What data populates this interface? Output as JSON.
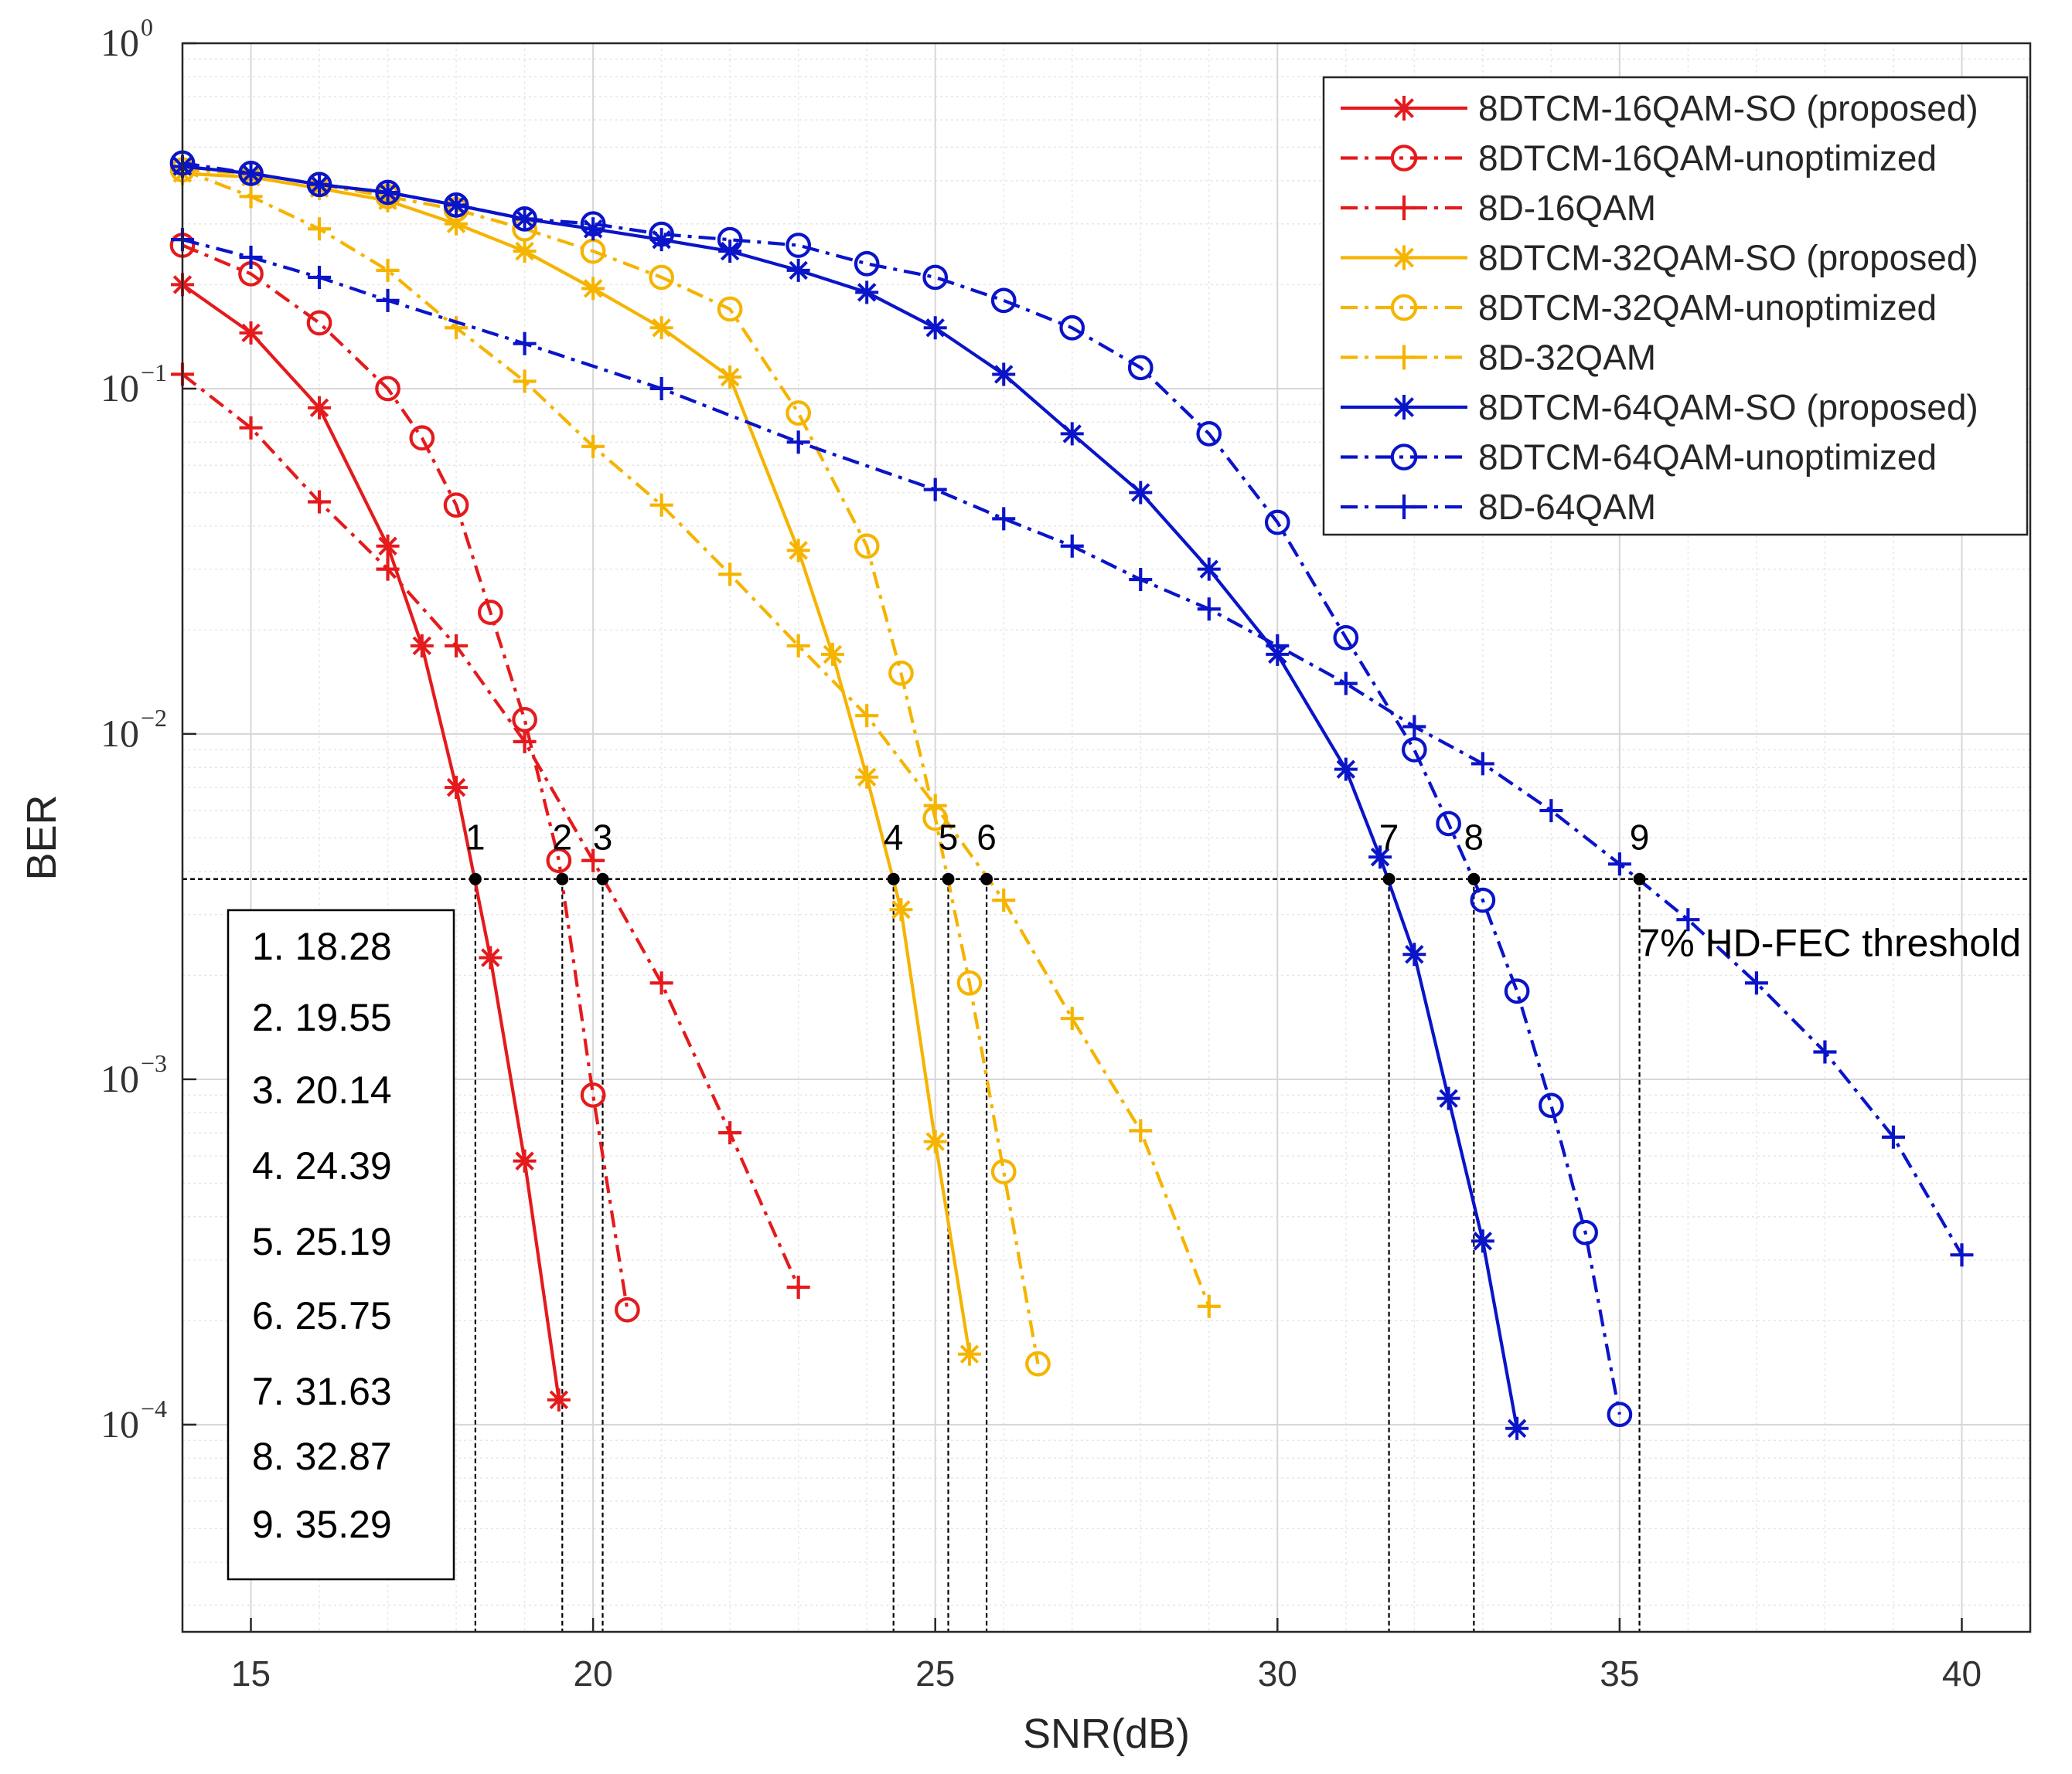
{
  "chart_data": {
    "type": "line",
    "xlabel": "SNR(dB)",
    "ylabel": "BER",
    "xlim": [
      14,
      41
    ],
    "ylim_log10": [
      -4.6,
      0
    ],
    "yscale": "log",
    "grid": true,
    "x_ticks": [
      15,
      20,
      25,
      30,
      35,
      40
    ],
    "y_ticks": [
      {
        "base": "10",
        "exp": "0"
      },
      {
        "base": "10",
        "exp": "−1"
      },
      {
        "base": "10",
        "exp": "−2"
      },
      {
        "base": "10",
        "exp": "−3"
      },
      {
        "base": "10",
        "exp": "−4"
      }
    ],
    "legend_position": "top-right",
    "threshold": {
      "label": "7% HD-FEC threshold",
      "ber": 0.0038
    },
    "threshold_points": [
      {
        "label": "1",
        "snr": 18.28
      },
      {
        "label": "2",
        "snr": 19.55
      },
      {
        "label": "3",
        "snr": 20.14
      },
      {
        "label": "4",
        "snr": 24.39
      },
      {
        "label": "5",
        "snr": 25.19
      },
      {
        "label": "6",
        "snr": 25.75
      },
      {
        "label": "7",
        "snr": 31.63
      },
      {
        "label": "8",
        "snr": 32.87
      },
      {
        "label": "9",
        "snr": 35.29
      }
    ],
    "value_box": [
      "1.  18.28",
      "2.  19.55",
      "3.  20.14",
      "4.  24.39",
      "5.  25.19",
      "6.  25.75",
      "7.  31.63",
      "8.  32.87",
      "9.  35.29"
    ],
    "series": [
      {
        "name": "8DTCM-16QAM-SO (proposed)",
        "color": "#e41a1c",
        "line": "solid",
        "marker": "asterisk",
        "x": [
          14,
          15,
          16,
          17,
          17.5,
          18,
          18.5,
          19,
          19.5
        ],
        "y": [
          0.2,
          0.145,
          0.088,
          0.035,
          0.018,
          0.007,
          0.00225,
          0.00058,
          0.000118
        ]
      },
      {
        "name": "8DTCM-16QAM-unoptimized",
        "color": "#e41a1c",
        "line": "dashdot",
        "marker": "circle",
        "x": [
          14,
          15,
          16,
          17,
          17.5,
          18,
          18.5,
          19,
          19.5,
          20,
          20.5
        ],
        "y": [
          0.26,
          0.215,
          0.155,
          0.1,
          0.072,
          0.046,
          0.0225,
          0.011,
          0.0043,
          0.0009,
          0.000215
        ]
      },
      {
        "name": "8D-16QAM",
        "color": "#e41a1c",
        "line": "dashdot",
        "marker": "plus",
        "x": [
          14,
          15,
          16,
          17,
          18,
          19,
          20,
          21,
          22,
          23
        ],
        "y": [
          0.11,
          0.077,
          0.047,
          0.03,
          0.018,
          0.0095,
          0.0043,
          0.0019,
          0.0007,
          0.00025
        ]
      },
      {
        "name": "8DTCM-32QAM-SO (proposed)",
        "color": "#f5b400",
        "line": "solid",
        "marker": "asterisk",
        "x": [
          14,
          15,
          16,
          17,
          18,
          19,
          20,
          21,
          22,
          23,
          23.5,
          24,
          24.5,
          25,
          25.5
        ],
        "y": [
          0.42,
          0.41,
          0.38,
          0.35,
          0.3,
          0.25,
          0.195,
          0.15,
          0.108,
          0.034,
          0.017,
          0.0075,
          0.0031,
          0.00066,
          0.00016
        ]
      },
      {
        "name": "8DTCM-32QAM-unoptimized",
        "color": "#f5b400",
        "line": "dashdot",
        "marker": "circle",
        "x": [
          14,
          15,
          16,
          17,
          18,
          19,
          20,
          21,
          22,
          23,
          24,
          24.5,
          25,
          25.5,
          26,
          26.5
        ],
        "y": [
          0.43,
          0.42,
          0.39,
          0.36,
          0.33,
          0.29,
          0.25,
          0.21,
          0.17,
          0.085,
          0.035,
          0.015,
          0.0057,
          0.0019,
          0.00054,
          0.00015
        ]
      },
      {
        "name": "8D-32QAM",
        "color": "#f5b400",
        "line": "dashdot",
        "marker": "plus",
        "x": [
          14,
          15,
          16,
          17,
          18,
          19,
          20,
          21,
          22,
          23,
          24,
          25,
          26,
          27,
          28,
          29
        ],
        "y": [
          0.43,
          0.36,
          0.29,
          0.22,
          0.15,
          0.105,
          0.068,
          0.046,
          0.029,
          0.018,
          0.0113,
          0.0062,
          0.0033,
          0.0015,
          0.00071,
          0.00022
        ]
      },
      {
        "name": "8DTCM-64QAM-SO (proposed)",
        "color": "#0a14c8",
        "line": "solid",
        "marker": "asterisk",
        "x": [
          14,
          15,
          16,
          17,
          18,
          19,
          20,
          21,
          22,
          23,
          24,
          25,
          26,
          27,
          28,
          29,
          30,
          31,
          31.5,
          32,
          32.5,
          33,
          33.5
        ],
        "y": [
          0.44,
          0.42,
          0.39,
          0.37,
          0.34,
          0.31,
          0.29,
          0.27,
          0.25,
          0.22,
          0.19,
          0.15,
          0.11,
          0.074,
          0.05,
          0.03,
          0.017,
          0.0079,
          0.0044,
          0.0023,
          0.00088,
          0.00034,
          9.75e-05
        ]
      },
      {
        "name": "8DTCM-64QAM-unoptimized",
        "color": "#0a14c8",
        "line": "dashdot",
        "marker": "circle",
        "x": [
          14,
          15,
          16,
          17,
          18,
          19,
          20,
          21,
          22,
          23,
          24,
          25,
          26,
          27,
          28,
          29,
          30,
          31,
          32,
          32.5,
          33,
          33.5,
          34,
          34.5,
          35
        ],
        "y": [
          0.45,
          0.42,
          0.39,
          0.37,
          0.34,
          0.31,
          0.3,
          0.28,
          0.27,
          0.26,
          0.23,
          0.21,
          0.18,
          0.15,
          0.115,
          0.074,
          0.041,
          0.019,
          0.009,
          0.0055,
          0.0033,
          0.0018,
          0.00084,
          0.00036,
          0.000107
        ]
      },
      {
        "name": "8D-64QAM",
        "color": "#0a14c8",
        "line": "dashdot",
        "marker": "plus",
        "x": [
          14,
          15,
          16,
          17,
          19,
          21,
          23,
          25,
          26,
          27,
          28,
          29,
          30,
          31,
          32,
          33,
          34,
          35,
          36,
          37,
          38,
          39,
          40
        ],
        "y": [
          0.27,
          0.24,
          0.21,
          0.18,
          0.135,
          0.1,
          0.07,
          0.051,
          0.042,
          0.035,
          0.028,
          0.023,
          0.018,
          0.014,
          0.0105,
          0.0082,
          0.006,
          0.0042,
          0.0029,
          0.0019,
          0.0012,
          0.00068,
          0.00031
        ]
      }
    ]
  }
}
